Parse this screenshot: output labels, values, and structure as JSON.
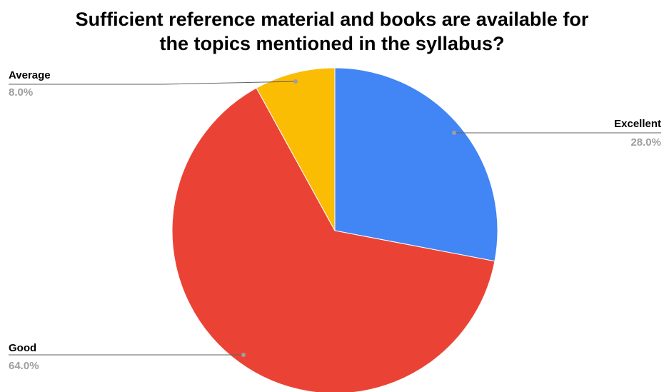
{
  "chart_data": {
    "type": "pie",
    "title_lines": [
      "Sufficient reference material and books are available for",
      "the topics mentioned in the syllabus?"
    ],
    "slices": [
      {
        "name": "Excellent",
        "value": 28.0,
        "label": "28.0%",
        "color": "#4285f4"
      },
      {
        "name": "Good",
        "value": 64.0,
        "label": "64.0%",
        "color": "#ea4335"
      },
      {
        "name": "Average",
        "value": 8.0,
        "label": "8.0%",
        "color": "#fbbc04"
      }
    ],
    "start_angle_deg": 0,
    "direction": "clockwise",
    "legend": "none"
  }
}
